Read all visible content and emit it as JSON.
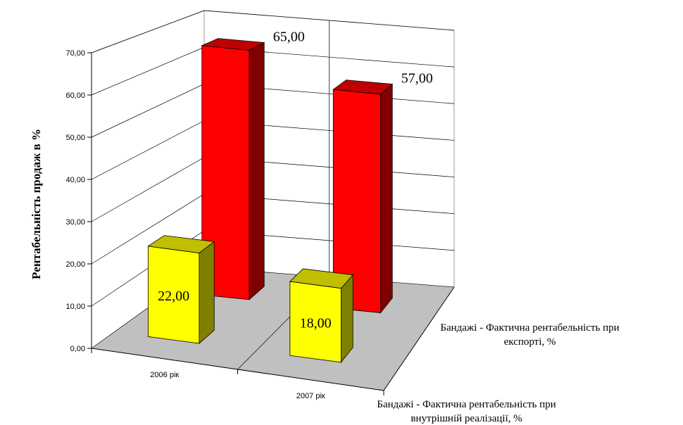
{
  "chart_data": {
    "type": "bar3d",
    "y_label": "Рентабельність продаж в %",
    "categories": [
      "2006 рік",
      "2007 рік"
    ],
    "series": [
      {
        "name": "Бандажі - Фактична рентабельність при експорті, %",
        "color": "#ff0000",
        "values": [
          65,
          57
        ],
        "value_labels": [
          "65,00",
          "57,00"
        ]
      },
      {
        "name": "Бандажі - Фактична рентабельність при внутрішній реалізації, %",
        "color": "#ffff00",
        "values": [
          22,
          18
        ],
        "value_labels": [
          "22,00",
          "18,00"
        ]
      }
    ],
    "ylim": [
      0,
      70
    ],
    "yticks": [
      {
        "value": 0,
        "label": "0,00"
      },
      {
        "value": 10,
        "label": "10,00"
      },
      {
        "value": 20,
        "label": "20,00"
      },
      {
        "value": 30,
        "label": "30,00"
      },
      {
        "value": 40,
        "label": "40,00"
      },
      {
        "value": 50,
        "label": "50,00"
      },
      {
        "value": 60,
        "label": "60,00"
      },
      {
        "value": 70,
        "label": "70,00"
      }
    ],
    "grid": true
  }
}
